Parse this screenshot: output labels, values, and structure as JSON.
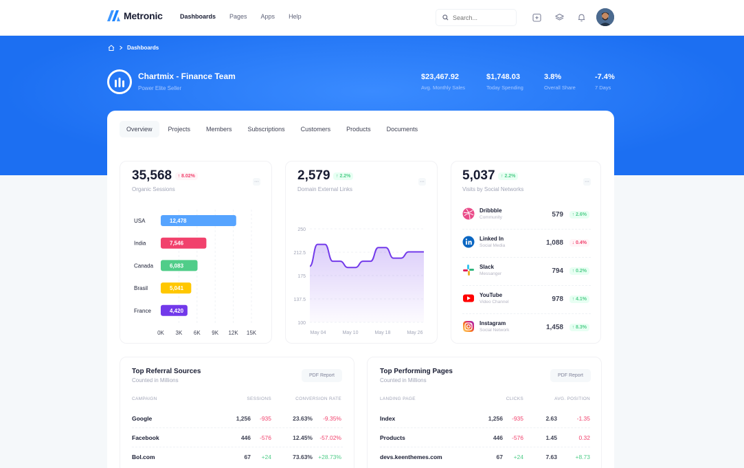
{
  "topbar": {
    "brand": "Metronic",
    "nav": [
      "Dashboards",
      "Pages",
      "Apps",
      "Help"
    ],
    "search_placeholder": "Search..."
  },
  "hero": {
    "breadcrumb": "Dashboards",
    "title": "Chartmix - Finance Team",
    "subtitle": "Power Elite Seller",
    "stats": [
      {
        "value": "$23,467.92",
        "label": "Avg. Monthly Sales"
      },
      {
        "value": "$1,748.03",
        "label": "Today Spending"
      },
      {
        "value": "3.8%",
        "label": "Overall Share"
      },
      {
        "value": "-7.4%",
        "label": "7 Days"
      }
    ]
  },
  "tabs": [
    "Overview",
    "Projects",
    "Members",
    "Subscriptions",
    "Customers",
    "Products",
    "Documents"
  ],
  "card1": {
    "value": "35,568",
    "change": "8.02%",
    "label": "Organic Sessions",
    "chart_data": {
      "type": "bar",
      "orientation": "horizontal",
      "categories": [
        "USA",
        "India",
        "Canada",
        "Brasil",
        "France"
      ],
      "values": [
        12478,
        7546,
        6083,
        5041,
        4420
      ],
      "value_labels": [
        "12,478",
        "7,546",
        "6,083",
        "5,041",
        "4,420"
      ],
      "colors": [
        "#56a4ff",
        "#f1416c",
        "#50cd89",
        "#ffc700",
        "#7239ea"
      ],
      "xlim": [
        0,
        15000
      ],
      "x_ticks": [
        "0K",
        "3K",
        "6K",
        "9K",
        "12K",
        "15K"
      ],
      "x_tick_values": [
        0,
        3000,
        6000,
        9000,
        12000,
        15000
      ]
    }
  },
  "card2": {
    "value": "2,579",
    "change": "2.2%",
    "label": "Domain External Links",
    "chart_data": {
      "type": "area",
      "ylim": [
        100,
        250
      ],
      "y_ticks": [
        "250",
        "212.5",
        "175",
        "137.5",
        "100"
      ],
      "y_tick_values": [
        250,
        212.5,
        175,
        137.5,
        100
      ],
      "x_ticks": [
        "May 04",
        "May 10",
        "May 18",
        "May 26"
      ],
      "x_tick_index": [
        0,
        3,
        6,
        9
      ],
      "values": [
        190,
        225,
        225,
        198,
        198,
        188,
        188,
        198,
        198,
        220,
        220,
        203,
        203,
        213,
        213,
        213
      ],
      "color": "#7239ea"
    }
  },
  "card3": {
    "value": "5,037",
    "change": "2.2%",
    "label": "Visits by Social Networks",
    "items": [
      {
        "name": "Dribbble",
        "desc": "Community",
        "count": "579",
        "change": "2.6%",
        "dir": "up"
      },
      {
        "name": "Linked In",
        "desc": "Social Media",
        "count": "1,088",
        "change": "0.4%",
        "dir": "down"
      },
      {
        "name": "Slack",
        "desc": "Messanger",
        "count": "794",
        "change": "0.2%",
        "dir": "up"
      },
      {
        "name": "YouTube",
        "desc": "Video Channel",
        "count": "978",
        "change": "4.1%",
        "dir": "up"
      },
      {
        "name": "Instagram",
        "desc": "Social Network",
        "count": "1,458",
        "change": "8.3%",
        "dir": "up"
      }
    ]
  },
  "referral": {
    "title": "Top Referral Sources",
    "subtitle": "Counted in Millions",
    "button": "PDF Report",
    "headers": [
      "Campaign",
      "Sessions",
      "Conversion Rate"
    ],
    "rows": [
      {
        "name": "Google",
        "sessions": "1,256",
        "sdelta": "-935",
        "rate": "23.63%",
        "rdelta": "-9.35%"
      },
      {
        "name": "Facebook",
        "sessions": "446",
        "sdelta": "-576",
        "rate": "12.45%",
        "rdelta": "-57.02%"
      },
      {
        "name": "Bol.com",
        "sessions": "67",
        "sdelta": "+24",
        "rate": "73.63%",
        "rdelta": "+28.73%"
      }
    ]
  },
  "pages": {
    "title": "Top Performing Pages",
    "subtitle": "Counted in Millions",
    "button": "PDF Report",
    "headers": [
      "Landing Page",
      "Clicks",
      "Avg. Position"
    ],
    "rows": [
      {
        "name": "Index",
        "sessions": "1,256",
        "sdelta": "-935",
        "rate": "2.63",
        "rdelta": "-1.35"
      },
      {
        "name": "Products",
        "sessions": "446",
        "sdelta": "-576",
        "rate": "1.45",
        "rdelta": "0.32"
      },
      {
        "name": "devs.keenthemes.com",
        "sessions": "67",
        "sdelta": "+24",
        "rate": "7.63",
        "rdelta": "+8.73"
      }
    ]
  }
}
